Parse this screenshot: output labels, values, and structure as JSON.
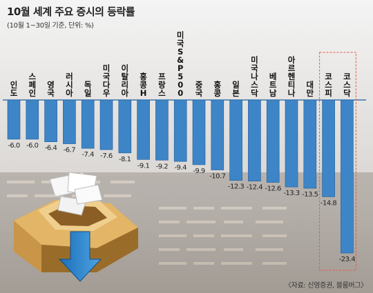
{
  "title": "10월 세계 주요 증시의 등락률",
  "subtitle": "(10월 1~30일 기준, 단위: %)",
  "source": "〈자료: 신영증권, 블룸버그〉",
  "colors": {
    "bar": "#3d85c6",
    "bar_dark": "#1e5d9e",
    "highlight_border": "#e05a4a"
  },
  "chart_data": {
    "type": "bar",
    "orientation": "vertical",
    "categories": [
      "인도",
      "스페인",
      "영국",
      "러시아",
      "독일",
      "미국다우",
      "이탈리아",
      "홍콩H",
      "프랑스",
      "미국S&P500",
      "중국",
      "홍콩",
      "일본",
      "미국나스닥",
      "베트남",
      "아르헨티나",
      "대만",
      "코스피",
      "코스닥"
    ],
    "values": [
      -6.0,
      -6.0,
      -6.4,
      -6.7,
      -7.4,
      -7.6,
      -8.1,
      -9.1,
      -9.2,
      -9.4,
      -9.9,
      -10.7,
      -12.3,
      -12.4,
      -12.6,
      -13.3,
      -13.5,
      -14.8,
      -23.4
    ],
    "value_labels": [
      "-6.0",
      "-6.0",
      "-6.4",
      "-6.7",
      "-7.4",
      "-7.6",
      "-8.1",
      "-9.1",
      "-9.2",
      "-9.4",
      "-9.9",
      "-10.7",
      "-12.3",
      "-12.4",
      "-12.6",
      "-13.3",
      "-13.5",
      "-14.8",
      "-23.4"
    ],
    "highlighted": [
      "코스피",
      "코스닥"
    ],
    "title": "10월 세계 주요 증시의 등락률",
    "xlabel": "",
    "ylabel": "",
    "ylim": [
      -23.4,
      0
    ],
    "grid": false,
    "legend": "none"
  }
}
